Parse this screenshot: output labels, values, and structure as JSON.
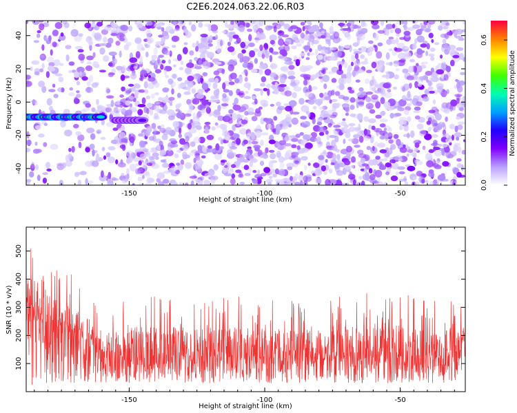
{
  "figure": {
    "title": "C2E6.2024.063.22.06.R03"
  },
  "chart_data": [
    {
      "type": "heatmap",
      "xlabel": "Height of straight line (km)",
      "ylabel": "Frequency (Hz)",
      "xlim": [
        -188,
        -26
      ],
      "ylim": [
        -50,
        49
      ],
      "xticks": [
        -150,
        -100,
        -50
      ],
      "xtick_labels": [
        "-150",
        "-100",
        "-50"
      ],
      "yticks": [
        -40,
        -20,
        0,
        20,
        40
      ],
      "ytick_labels": [
        "-40",
        "-20",
        "0",
        "20",
        "40"
      ],
      "grid": false,
      "colorbar": {
        "label": "Normalized spectral amplitude",
        "range": [
          0.0,
          0.68
        ],
        "ticks": [
          0.0,
          0.2,
          0.4,
          0.6
        ],
        "tick_labels": [
          "0.0",
          "0.2",
          "0.4",
          "0.6"
        ],
        "colormap": [
          "#ffffff",
          "#b8a0ff",
          "#8000ff",
          "#2000ff",
          "#00a0ff",
          "#00ffb0",
          "#40ff00",
          "#ffff00",
          "#ff8000",
          "#ff0040"
        ]
      },
      "features": [
        {
          "name": "strong band",
          "x_range": [
            -188,
            -160
          ],
          "frequency": -9,
          "amplitude": 0.5
        },
        {
          "name": "weaker band",
          "x_range": [
            -155,
            -145
          ],
          "frequency": -11,
          "amplitude": 0.25
        },
        {
          "name": "isolated spot",
          "x": -46,
          "frequency": -40,
          "amplitude": 0.15
        }
      ]
    },
    {
      "type": "line",
      "xlabel": "Height of straight line (km)",
      "ylabel": "SNR (10 * v/v)",
      "xlim": [
        -188,
        -26
      ],
      "ylim": [
        0,
        585
      ],
      "xticks": [
        -150,
        -100,
        -50
      ],
      "xtick_labels": [
        "-150",
        "-100",
        "-50"
      ],
      "yticks": [
        100,
        200,
        300,
        400,
        500
      ],
      "ytick_labels": [
        "100",
        "200",
        "300",
        "400",
        "500"
      ],
      "grid": false,
      "color": "#ee3333",
      "envelope": {
        "x": [
          -188,
          -185,
          -180,
          -175,
          -170,
          -165,
          -160,
          -155,
          -150,
          -140,
          -120,
          -100,
          -80,
          -60,
          -40,
          -26
        ],
        "mean": [
          240,
          250,
          230,
          210,
          195,
          170,
          140,
          125,
          120,
          122,
          120,
          118,
          120,
          120,
          122,
          125
        ],
        "upper_peaks": [
          580,
          570,
          420,
          470,
          430,
          360,
          290,
          300,
          360,
          340,
          350,
          330,
          320,
          370,
          330,
          340
        ],
        "lower": [
          20,
          20,
          30,
          30,
          30,
          30,
          30,
          30,
          30,
          30,
          30,
          30,
          30,
          30,
          30,
          30
        ]
      }
    }
  ]
}
